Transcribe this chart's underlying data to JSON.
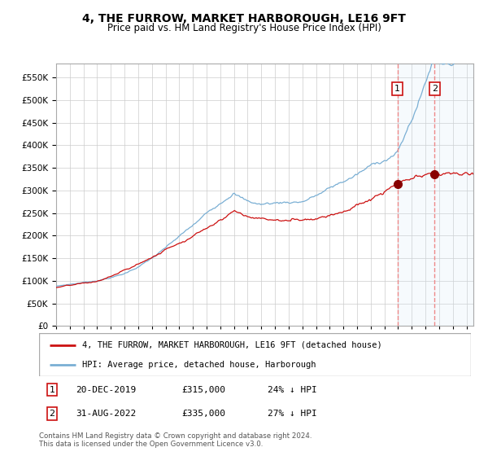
{
  "title": "4, THE FURROW, MARKET HARBOROUGH, LE16 9FT",
  "subtitle": "Price paid vs. HM Land Registry's House Price Index (HPI)",
  "hpi_label": "HPI: Average price, detached house, Harborough",
  "property_label": "4, THE FURROW, MARKET HARBOROUGH, LE16 9FT (detached house)",
  "hpi_color": "#7aafd4",
  "property_color": "#cc1111",
  "marker_color": "#880000",
  "vline_color": "#ee8888",
  "shade_color": "#d0e8f8",
  "bg_color": "#ffffff",
  "grid_color": "#cccccc",
  "ylim": [
    0,
    580000
  ],
  "yticks": [
    0,
    50000,
    100000,
    150000,
    200000,
    250000,
    300000,
    350000,
    400000,
    450000,
    500000,
    550000
  ],
  "sale1_date": "20-DEC-2019",
  "sale1_price": 315000,
  "sale1_pct": "24% ↓ HPI",
  "sale2_date": "31-AUG-2022",
  "sale2_price": 335000,
  "sale2_pct": "27% ↓ HPI",
  "sale1_year": 2019.95,
  "sale2_year": 2022.67,
  "start_year": 1995.0,
  "end_year": 2025.5,
  "footer": "Contains HM Land Registry data © Crown copyright and database right 2024.\nThis data is licensed under the Open Government Licence v3.0.",
  "title_fontsize": 10,
  "subtitle_fontsize": 8.5,
  "tick_fontsize": 7.5
}
